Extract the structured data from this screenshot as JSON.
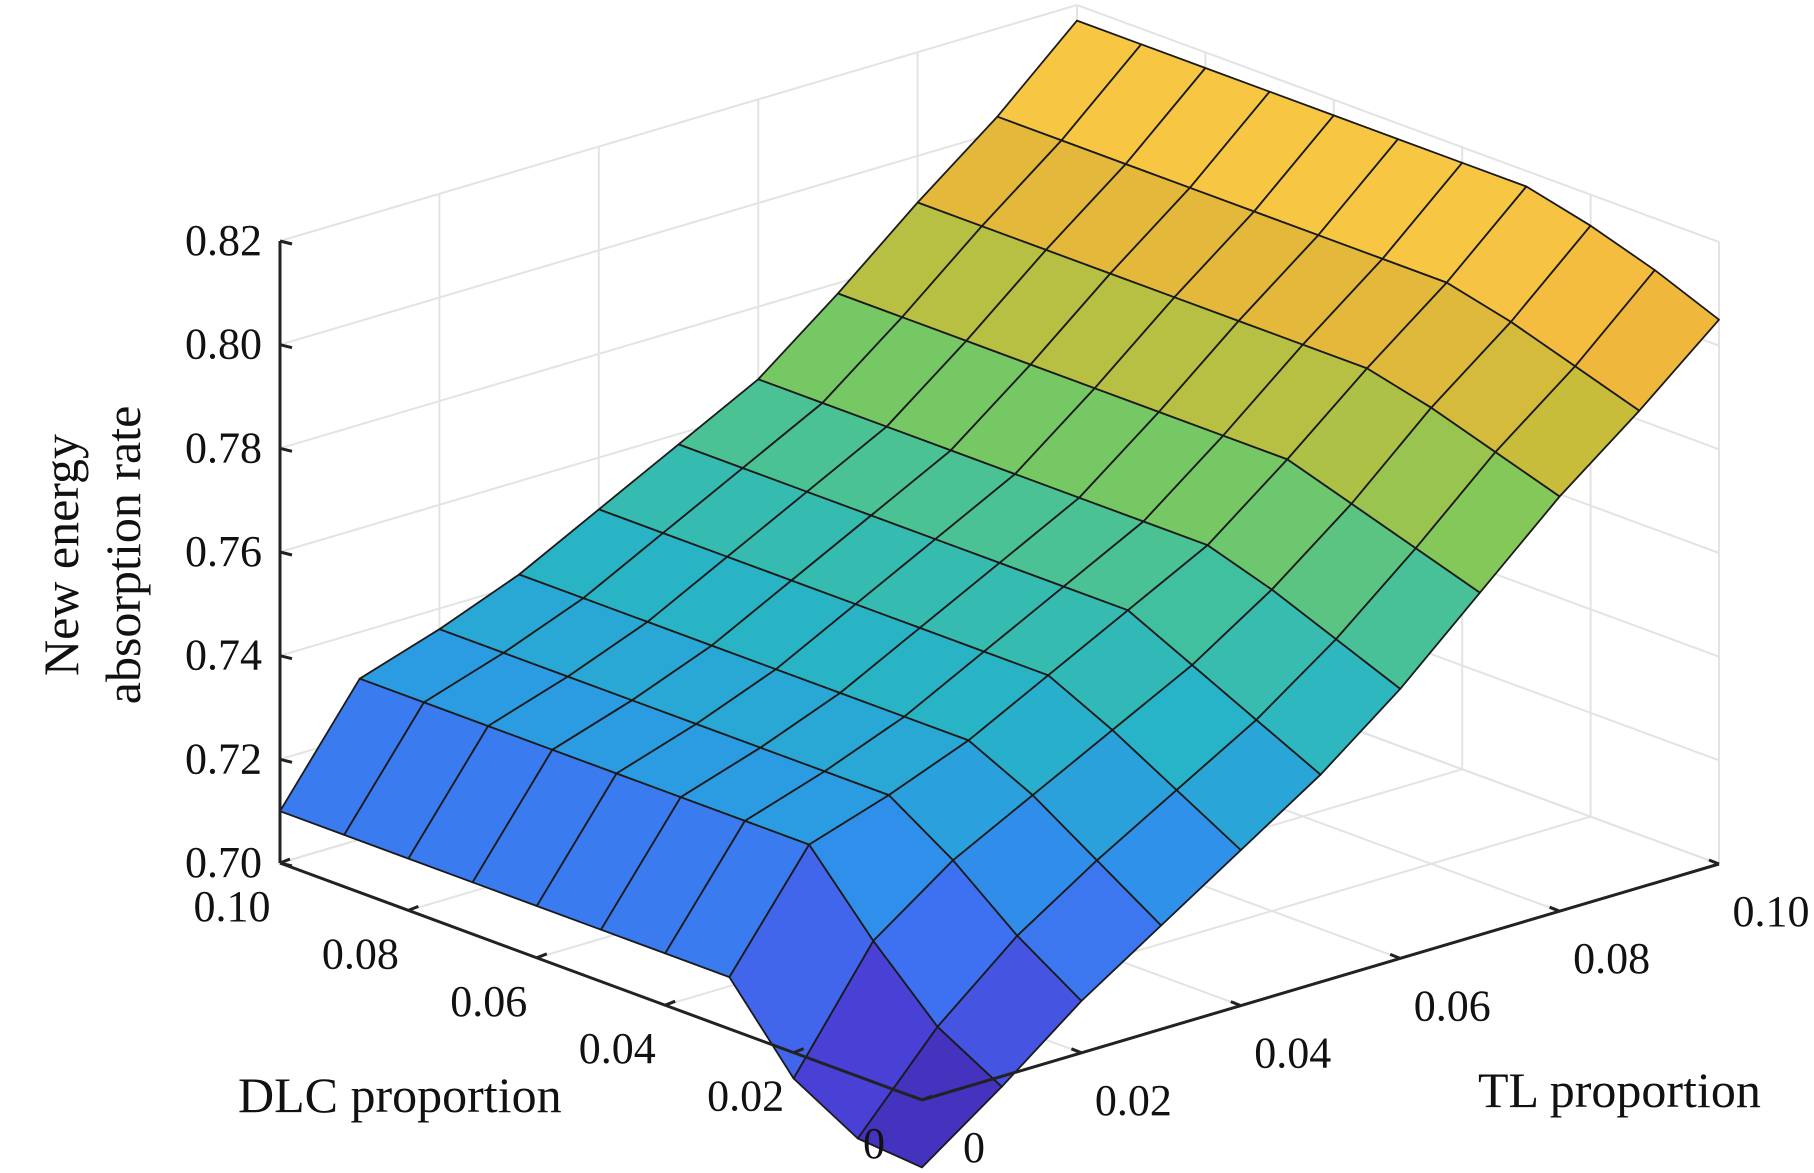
{
  "chart_data": {
    "type": "surface",
    "xlabel": "TL proportion",
    "ylabel": "DLC proportion",
    "zlabel_lines": [
      "New energy",
      "absorption rate"
    ],
    "x_values": [
      0,
      0.01,
      0.02,
      0.03,
      0.04,
      0.05,
      0.06,
      0.07,
      0.08,
      0.09,
      0.1
    ],
    "y_values": [
      0,
      0.01,
      0.02,
      0.03,
      0.04,
      0.05,
      0.06,
      0.07,
      0.08,
      0.09,
      0.1
    ],
    "x_ticks": [
      "0",
      "0.02",
      "0.04",
      "0.06",
      "0.08",
      "0.10"
    ],
    "y_ticks": [
      "0",
      "0.02",
      "0.04",
      "0.06",
      "0.08",
      "0.10"
    ],
    "z_ticks": [
      "0.70",
      "0.72",
      "0.74",
      "0.76",
      "0.78",
      "0.80",
      "0.82"
    ],
    "xlim": [
      0,
      0.1
    ],
    "ylim": [
      0,
      0.1
    ],
    "zlim": [
      0.7,
      0.82
    ],
    "grid": true,
    "colormap": [
      "#3e26a8",
      "#4a42d8",
      "#3f70f2",
      "#2c96e8",
      "#27b3c8",
      "#3fc0a2",
      "#7bc95e",
      "#c7bd3a",
      "#f2b63c",
      "#fad348"
    ],
    "z_by_tl": [
      {
        "tl": 0.0,
        "z": [
          0.687,
          0.688,
          0.695,
          0.71,
          0.71,
          0.71,
          0.71,
          0.71,
          0.71,
          0.71,
          0.71
        ]
      },
      {
        "tl": 0.01,
        "z": [
          0.698,
          0.705,
          0.717,
          0.731,
          0.731,
          0.731,
          0.731,
          0.731,
          0.731,
          0.731,
          0.731
        ]
      },
      {
        "tl": 0.02,
        "z": [
          0.71,
          0.718,
          0.728,
          0.736,
          0.736,
          0.736,
          0.736,
          0.736,
          0.736,
          0.736,
          0.736
        ]
      },
      {
        "tl": 0.03,
        "z": [
          0.72,
          0.728,
          0.736,
          0.742,
          0.742,
          0.742,
          0.742,
          0.742,
          0.742,
          0.742,
          0.742
        ]
      },
      {
        "tl": 0.04,
        "z": [
          0.73,
          0.737,
          0.744,
          0.75,
          0.75,
          0.75,
          0.75,
          0.75,
          0.75,
          0.75,
          0.75
        ]
      },
      {
        "tl": 0.05,
        "z": [
          0.74,
          0.746,
          0.752,
          0.758,
          0.758,
          0.758,
          0.758,
          0.758,
          0.758,
          0.758,
          0.758
        ]
      },
      {
        "tl": 0.06,
        "z": [
          0.752,
          0.757,
          0.762,
          0.766,
          0.766,
          0.766,
          0.766,
          0.766,
          0.766,
          0.766,
          0.766
        ]
      },
      {
        "tl": 0.07,
        "z": [
          0.766,
          0.77,
          0.774,
          0.778,
          0.778,
          0.778,
          0.778,
          0.778,
          0.778,
          0.778,
          0.778
        ]
      },
      {
        "tl": 0.08,
        "z": [
          0.78,
          0.784,
          0.788,
          0.791,
          0.791,
          0.791,
          0.791,
          0.791,
          0.791,
          0.791,
          0.791
        ]
      },
      {
        "tl": 0.09,
        "z": [
          0.792,
          0.796,
          0.8,
          0.803,
          0.803,
          0.803,
          0.803,
          0.803,
          0.803,
          0.803,
          0.803
        ]
      },
      {
        "tl": 0.1,
        "z": [
          0.805,
          0.81,
          0.814,
          0.817,
          0.817,
          0.817,
          0.817,
          0.817,
          0.817,
          0.817,
          0.817
        ]
      }
    ]
  }
}
